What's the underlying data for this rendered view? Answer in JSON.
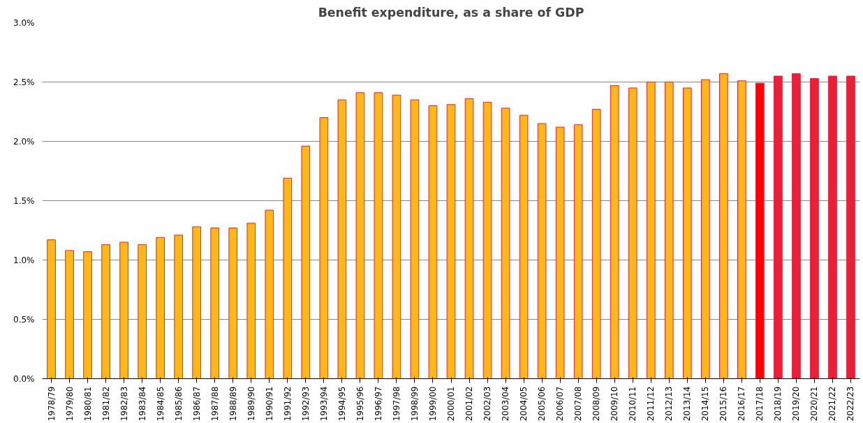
{
  "chart_data": {
    "type": "bar",
    "title": "Benefit expenditure, as a share of GDP",
    "categories": [
      "1978/79",
      "1979/80",
      "1980/81",
      "1981/82",
      "1982/83",
      "1983/84",
      "1984/85",
      "1985/86",
      "1986/87",
      "1987/88",
      "1988/89",
      "1989/90",
      "1990/91",
      "1991/92",
      "1992/93",
      "1993/94",
      "1994/95",
      "1995/96",
      "1996/97",
      "1997/98",
      "1998/99",
      "1999/00",
      "2000/01",
      "2001/02",
      "2002/03",
      "2003/04",
      "2004/05",
      "2005/06",
      "2006/07",
      "2007/08",
      "2008/09",
      "2009/10",
      "2010/11",
      "2011/12",
      "2012/13",
      "2013/14",
      "2014/15",
      "2015/16",
      "2016/17",
      "2017/18",
      "2018/19",
      "2019/20",
      "2020/21",
      "2021/22",
      "2022/23"
    ],
    "values": [
      1.17,
      1.08,
      1.07,
      1.13,
      1.15,
      1.13,
      1.19,
      1.21,
      1.28,
      1.27,
      1.27,
      1.31,
      1.42,
      1.69,
      1.96,
      2.2,
      2.35,
      2.41,
      2.41,
      2.39,
      2.35,
      2.3,
      2.31,
      2.36,
      2.33,
      2.28,
      2.22,
      2.15,
      2.12,
      2.14,
      2.27,
      2.47,
      2.45,
      2.5,
      2.5,
      2.45,
      2.52,
      2.57,
      2.51,
      2.49,
      2.55,
      2.57,
      2.53,
      2.55,
      2.55
    ],
    "colors": [
      "#ffb81c",
      "#ffb81c",
      "#ffb81c",
      "#ffb81c",
      "#ffb81c",
      "#ffb81c",
      "#ffb81c",
      "#ffb81c",
      "#ffb81c",
      "#ffb81c",
      "#ffb81c",
      "#ffb81c",
      "#ffb81c",
      "#ffb81c",
      "#ffb81c",
      "#ffb81c",
      "#ffb81c",
      "#ffb81c",
      "#ffb81c",
      "#ffb81c",
      "#ffb81c",
      "#ffb81c",
      "#ffb81c",
      "#ffb81c",
      "#ffb81c",
      "#ffb81c",
      "#ffb81c",
      "#ffb81c",
      "#ffb81c",
      "#ffb81c",
      "#ffb81c",
      "#ffb81c",
      "#ffb81c",
      "#ffb81c",
      "#ffb81c",
      "#ffb81c",
      "#ffb81c",
      "#ffb81c",
      "#ffb81c",
      "#ff0000",
      "#e8203a",
      "#e8203a",
      "#e8203a",
      "#e8203a",
      "#e8203a"
    ],
    "ylim": [
      0,
      3
    ],
    "yticks": [
      {
        "value": 0,
        "label": "0.0%"
      },
      {
        "value": 0.5,
        "label": "0.5%"
      },
      {
        "value": 1,
        "label": "1.0%"
      },
      {
        "value": 1.5,
        "label": "1.5%"
      },
      {
        "value": 2,
        "label": "2.0%"
      },
      {
        "value": 2.5,
        "label": "2.5%"
      },
      {
        "value": 3,
        "label": "3.0%"
      }
    ],
    "grid": "y"
  }
}
